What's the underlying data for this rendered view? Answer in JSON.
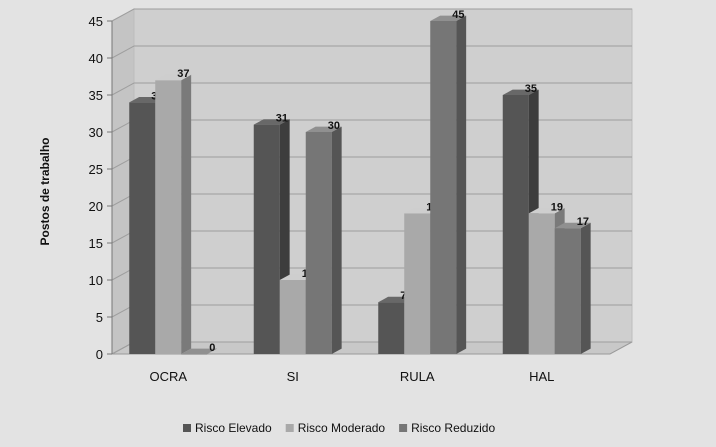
{
  "chart_data": {
    "type": "bar",
    "categories": [
      "OCRA",
      "SI",
      "RULA",
      "HAL"
    ],
    "series": [
      {
        "name": "Risco Elevado",
        "values": [
          34,
          31,
          7,
          35
        ],
        "color": "#555555"
      },
      {
        "name": "Risco Moderado",
        "values": [
          37,
          10,
          19,
          19
        ],
        "color": "#a9a9a9"
      },
      {
        "name": "Risco Reduzido",
        "values": [
          0,
          30,
          45,
          17
        ],
        "color": "#767676"
      }
    ],
    "ylabel": "Postos de trabalho",
    "ylim": [
      0,
      45
    ],
    "yticks": [
      0,
      5,
      10,
      15,
      20,
      25,
      30,
      35,
      40,
      45
    ],
    "grid": true,
    "legend_position": "bottom",
    "background_color": "#e3e3e3",
    "plot_background_color": "#cfcfcf"
  }
}
